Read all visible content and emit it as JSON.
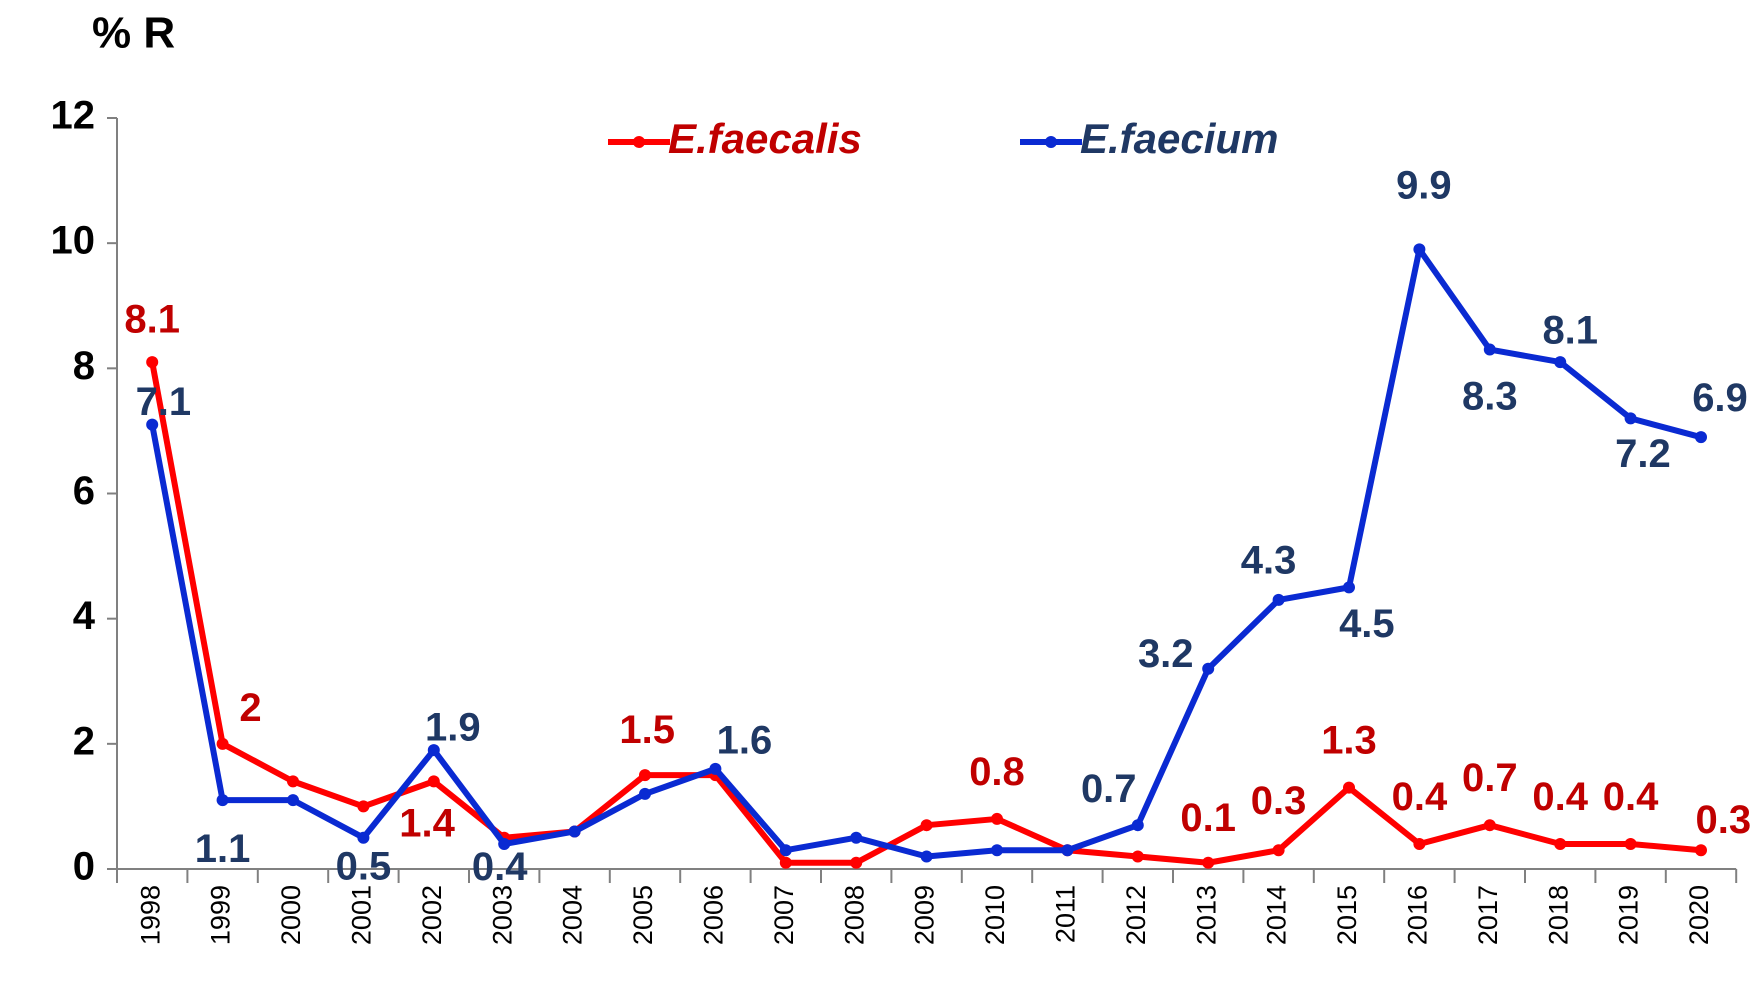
{
  "chart_data": {
    "type": "line",
    "ylabel": "% R",
    "categories": [
      "1998",
      "1999",
      "2000",
      "2001",
      "2002",
      "2003",
      "2004",
      "2005",
      "2006",
      "2007",
      "2008",
      "2009",
      "2010",
      "2011",
      "2012",
      "2013",
      "2014",
      "2015",
      "2016",
      "2017",
      "2018",
      "2019",
      "2020"
    ],
    "series": [
      {
        "name": "E.faecalis",
        "color": "#ff0000",
        "label_color": "#c00000",
        "values": [
          8.1,
          2,
          1.4,
          1.0,
          1.4,
          0.5,
          0.6,
          1.5,
          1.5,
          0.1,
          0.1,
          0.7,
          0.8,
          0.3,
          0.2,
          0.1,
          0.3,
          1.3,
          0.4,
          0.7,
          0.4,
          0.4,
          0.3
        ],
        "value_labels": [
          "8.1",
          "2",
          null,
          null,
          "1.4",
          null,
          null,
          "1.5",
          null,
          null,
          null,
          null,
          "0.8",
          null,
          null,
          "0.1",
          "0.3",
          "1.3",
          "0.4",
          "0.7",
          "0.4",
          "0.4",
          "0.3"
        ]
      },
      {
        "name": "E.faecium",
        "color": "#0a2ad2",
        "label_color": "#1f3864",
        "values": [
          7.1,
          1.1,
          1.1,
          0.5,
          1.9,
          0.4,
          0.6,
          1.2,
          1.6,
          0.3,
          0.5,
          0.2,
          0.3,
          0.3,
          0.7,
          3.2,
          4.3,
          4.5,
          9.9,
          8.3,
          8.1,
          7.2,
          6.9
        ],
        "value_labels": [
          "7.1",
          "1.1",
          null,
          "0.5",
          "1.9",
          "0.4",
          null,
          null,
          "1.6",
          null,
          null,
          null,
          null,
          null,
          "0.7",
          "3.2",
          "4.3",
          "4.5",
          "9.9",
          "8.3",
          "8.1",
          "7.2",
          "6.9"
        ]
      }
    ],
    "ylim": [
      0,
      12
    ],
    "yticks": [
      0,
      2,
      4,
      6,
      8,
      10,
      12
    ],
    "grid": false,
    "legend": "top"
  }
}
